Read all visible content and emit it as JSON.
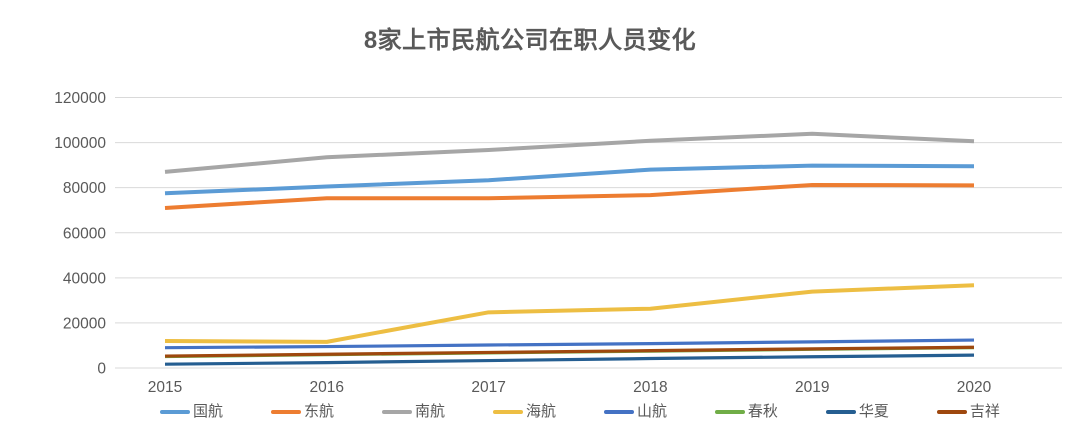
{
  "title": "8家上市民航公司在职人员变化",
  "colors": {
    "background": "#FFFFFF",
    "title_text": "#595959",
    "axis_text": "#595959",
    "gridline": "#D9D9D9"
  },
  "chart_data": {
    "type": "line",
    "title": "8家上市民航公司在职人员变化",
    "categories": [
      "2015",
      "2016",
      "2017",
      "2018",
      "2019",
      "2020"
    ],
    "series": [
      {
        "name": "国航",
        "color": "#5B9BD5",
        "stroke_width": 4,
        "values": [
          77500,
          80500,
          83300,
          88000,
          89800,
          89500
        ]
      },
      {
        "name": "东航",
        "color": "#ED7D31",
        "stroke_width": 4,
        "values": [
          71000,
          75300,
          75300,
          76700,
          81200,
          81000
        ]
      },
      {
        "name": "南航",
        "color": "#A6A6A6",
        "stroke_width": 4,
        "values": [
          87000,
          93500,
          96700,
          100800,
          103900,
          100600
        ]
      },
      {
        "name": "海航",
        "color": "#EDBE43",
        "stroke_width": 4,
        "values": [
          12000,
          11600,
          24700,
          26300,
          33900,
          36700
        ]
      },
      {
        "name": "山航",
        "color": "#4472C4",
        "stroke_width": 3.2,
        "values": [
          9000,
          9500,
          10200,
          10800,
          11600,
          12400
        ]
      },
      {
        "name": "春秋",
        "color": "#70AD47",
        "stroke_width": 3.2,
        "values": [
          5100,
          5900,
          6700,
          7500,
          8300,
          9000
        ]
      },
      {
        "name": "华夏",
        "color": "#255E91",
        "stroke_width": 3.2,
        "values": [
          1700,
          2400,
          3300,
          4200,
          5000,
          5700
        ]
      },
      {
        "name": "吉祥",
        "color": "#9E480E",
        "stroke_width": 3.2,
        "values": [
          5300,
          6100,
          6900,
          7700,
          8500,
          9200
        ]
      }
    ],
    "ylim": [
      0,
      120000
    ],
    "yticks": [
      0,
      20000,
      40000,
      60000,
      80000,
      100000,
      120000
    ],
    "ytick_labels": [
      "0",
      "20000",
      "40000",
      "60000",
      "80000",
      "100000",
      "120000"
    ],
    "grid": true,
    "legend_position": "bottom",
    "note": "春秋 series is hidden beneath 吉祥 series (overlapping values)"
  }
}
